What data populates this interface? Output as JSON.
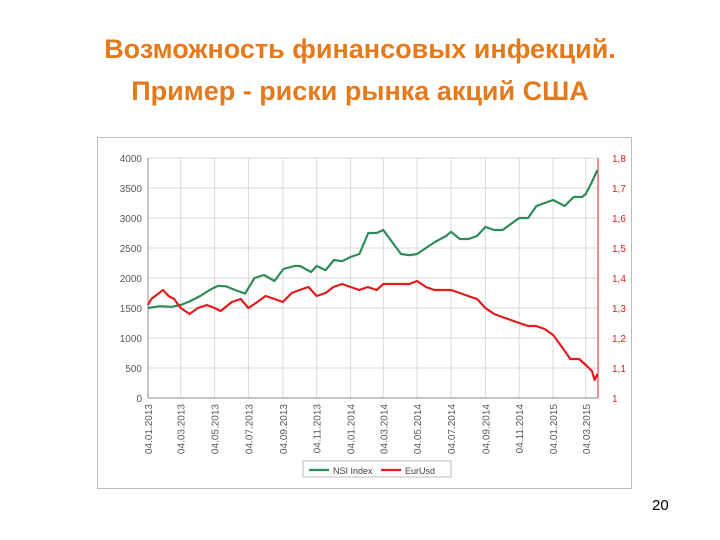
{
  "slide": {
    "title_line1": "Возможность финансовых инфекций.",
    "title_line2": "Пример - риски рынка акций США",
    "page_number": "20"
  },
  "colors": {
    "title": "#e47a1c",
    "nsi": "#2e8b57",
    "eurusd": "#e21a1a",
    "grid": "#d9d9d9"
  },
  "chart_data": {
    "type": "line",
    "x_ticks": [
      "04.01.2013",
      "04.03.2013",
      "04.05.2013",
      "04.07.2013",
      "04.09.2013",
      "04.11.2013",
      "04.01.2014",
      "04.03.2014",
      "04.05.2014",
      "04.07.2014",
      "04.09.2014",
      "04.11.2014",
      "04.01.2015",
      "04.03.2015"
    ],
    "y_left": {
      "min": 0,
      "max": 4000,
      "ticks": [
        "0",
        "500",
        "1000",
        "1500",
        "2000",
        "2500",
        "3000",
        "3500",
        "4000"
      ]
    },
    "y_right": {
      "min": 1.0,
      "max": 1.8,
      "ticks": [
        "1",
        "1,1",
        "1,2",
        "1,3",
        "1,4",
        "1,5",
        "1,6",
        "1,7",
        "1,8"
      ]
    },
    "legend": {
      "position": "bottom"
    },
    "series": [
      {
        "name": "NSI Index",
        "axis": "left",
        "color": "#2e8b57",
        "x": [
          "2013-01-04",
          "2013-01-25",
          "2013-02-15",
          "2013-03-04",
          "2013-03-20",
          "2013-04-08",
          "2013-04-25",
          "2013-05-10",
          "2013-05-25",
          "2013-06-10",
          "2013-06-28",
          "2013-07-15",
          "2013-08-01",
          "2013-08-20",
          "2013-09-05",
          "2013-09-25",
          "2013-10-05",
          "2013-10-25",
          "2013-11-04",
          "2013-11-20",
          "2013-12-05",
          "2013-12-20",
          "2014-01-04",
          "2014-01-20",
          "2014-02-05",
          "2014-02-20",
          "2014-03-04",
          "2014-03-20",
          "2014-04-05",
          "2014-04-20",
          "2014-05-04",
          "2014-05-20",
          "2014-06-05",
          "2014-06-25",
          "2014-07-04",
          "2014-07-20",
          "2014-08-05",
          "2014-08-20",
          "2014-09-04",
          "2014-09-20",
          "2014-10-05",
          "2014-10-20",
          "2014-11-04",
          "2014-11-20",
          "2014-12-05",
          "2014-12-20",
          "2015-01-04",
          "2015-01-25",
          "2015-02-10",
          "2015-02-25",
          "2015-03-04",
          "2015-03-15",
          "2015-03-25"
        ],
        "values": [
          1500,
          1530,
          1520,
          1550,
          1610,
          1700,
          1800,
          1870,
          1860,
          1800,
          1740,
          2000,
          2050,
          1950,
          2150,
          2200,
          2200,
          2100,
          2200,
          2130,
          2300,
          2280,
          2350,
          2400,
          2750,
          2750,
          2800,
          2600,
          2400,
          2380,
          2400,
          2500,
          2600,
          2700,
          2770,
          2650,
          2650,
          2700,
          2850,
          2800,
          2800,
          2900,
          3000,
          3000,
          3200,
          3250,
          3300,
          3200,
          3350,
          3350,
          3400,
          3600,
          3800
        ]
      },
      {
        "name": "EurUsd",
        "axis": "right",
        "color": "#e21a1a",
        "x": [
          "2013-01-04",
          "2013-01-10",
          "2013-01-31",
          "2013-02-10",
          "2013-02-20",
          "2013-03-04",
          "2013-03-20",
          "2013-04-04",
          "2013-04-20",
          "2013-05-04",
          "2013-05-15",
          "2013-06-04",
          "2013-06-20",
          "2013-07-04",
          "2013-07-20",
          "2013-08-04",
          "2013-08-20",
          "2013-09-04",
          "2013-09-20",
          "2013-10-04",
          "2013-10-20",
          "2013-11-04",
          "2013-11-20",
          "2013-12-04",
          "2013-12-20",
          "2014-01-04",
          "2014-01-20",
          "2014-02-04",
          "2014-02-20",
          "2014-03-04",
          "2014-03-20",
          "2014-04-04",
          "2014-04-20",
          "2014-05-04",
          "2014-05-20",
          "2014-06-04",
          "2014-06-20",
          "2014-07-04",
          "2014-07-20",
          "2014-08-04",
          "2014-08-20",
          "2014-09-04",
          "2014-09-20",
          "2014-10-04",
          "2014-10-20",
          "2014-11-04",
          "2014-11-20",
          "2014-12-04",
          "2014-12-20",
          "2015-01-04",
          "2015-01-20",
          "2015-02-04",
          "2015-02-20",
          "2015-03-04",
          "2015-03-15",
          "2015-03-20",
          "2015-03-25"
        ],
        "values": [
          1.31,
          1.33,
          1.36,
          1.34,
          1.33,
          1.3,
          1.28,
          1.3,
          1.31,
          1.3,
          1.29,
          1.32,
          1.33,
          1.3,
          1.32,
          1.34,
          1.33,
          1.32,
          1.35,
          1.36,
          1.37,
          1.34,
          1.35,
          1.37,
          1.38,
          1.37,
          1.36,
          1.37,
          1.36,
          1.38,
          1.38,
          1.38,
          1.38,
          1.39,
          1.37,
          1.36,
          1.36,
          1.36,
          1.35,
          1.34,
          1.33,
          1.3,
          1.28,
          1.27,
          1.26,
          1.25,
          1.24,
          1.24,
          1.23,
          1.21,
          1.17,
          1.13,
          1.13,
          1.11,
          1.09,
          1.06,
          1.08
        ]
      }
    ]
  }
}
